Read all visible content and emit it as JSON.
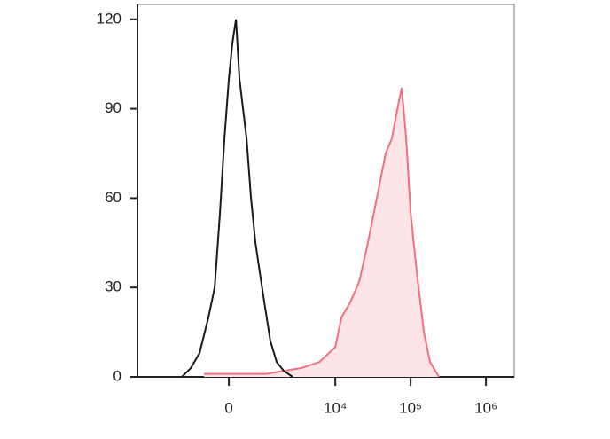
{
  "chart_data": {
    "type": "histogram-overlay",
    "xscale": "biexponential",
    "xlim": [
      -6300,
      2370000
    ],
    "xticks": [
      0,
      {
        "value": 10000,
        "label": "10⁴"
      },
      {
        "value": 100000,
        "label": "10⁵"
      },
      {
        "value": 1000000,
        "label": "10⁶"
      }
    ],
    "ylim": [
      0,
      125
    ],
    "yticks": [
      0,
      30,
      60,
      90,
      120
    ],
    "series": [
      {
        "color": "#f07080",
        "fill": "#fde4e7",
        "x": [
          -645,
          1085,
          3530,
          6110,
          10000,
          12100,
          15800,
          20800,
          27100,
          35600,
          46600,
          56400,
          66800,
          76100,
          87400,
          100000,
          121000,
          150000,
          181000,
          238000
        ],
        "values": [
          1,
          1,
          3,
          5,
          10,
          20,
          25,
          32,
          45,
          60,
          75,
          80,
          90,
          97,
          80,
          55,
          35,
          15,
          5,
          0
        ]
      },
      {
        "color": "#1a1a1a",
        "x": [
          -1535,
          -1115,
          -790,
          -515,
          -346,
          -213,
          -105,
          0,
          84,
          170,
          256,
          346,
          441,
          566,
          701,
          848,
          1015,
          1270,
          1580,
          2010,
          2670
        ],
        "values": [
          0,
          3,
          8,
          20,
          30,
          55,
          80,
          100,
          112,
          120,
          100,
          90,
          80,
          60,
          45,
          35,
          25,
          12,
          5,
          2,
          0
        ]
      }
    ]
  }
}
